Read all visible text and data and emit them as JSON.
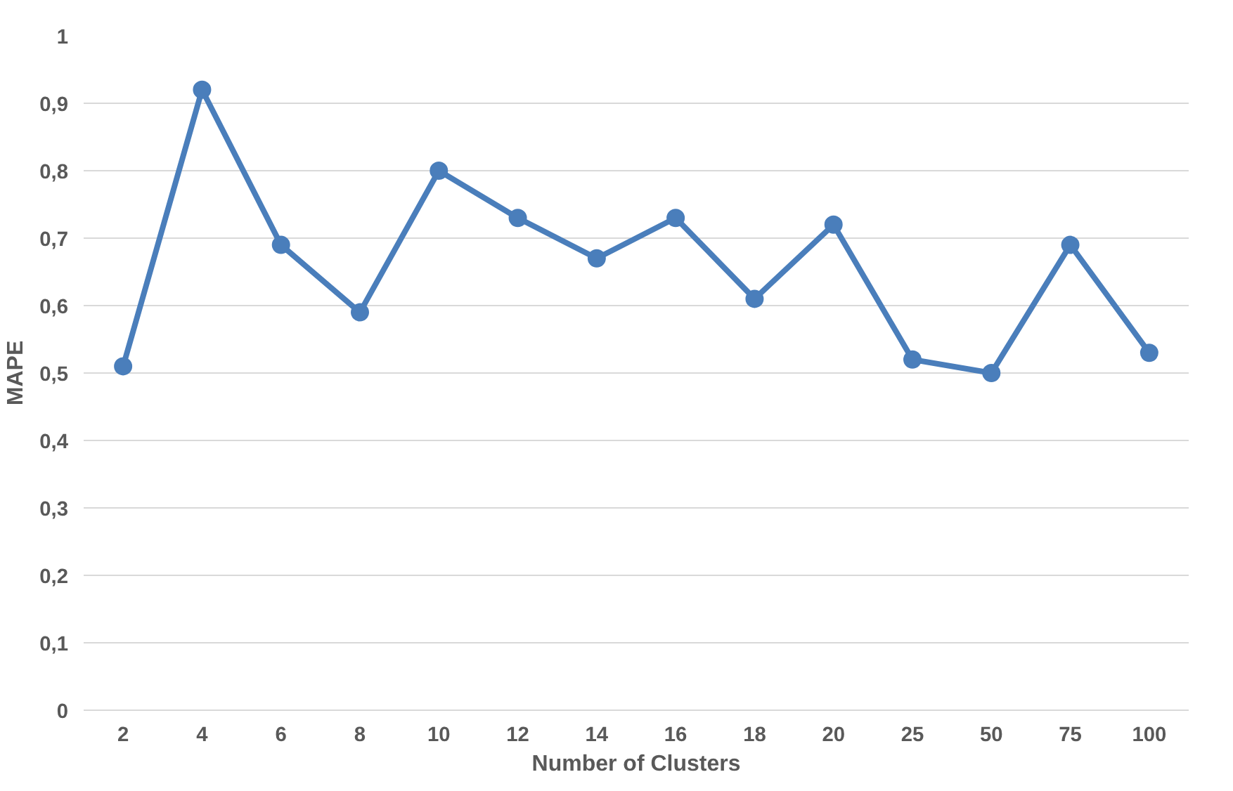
{
  "chart_data": {
    "type": "line",
    "xlabel": "Number of Clusters",
    "ylabel": "MAPE",
    "categories": [
      "2",
      "4",
      "6",
      "8",
      "10",
      "12",
      "14",
      "16",
      "18",
      "20",
      "25",
      "50",
      "75",
      "100"
    ],
    "series": [
      {
        "color": "#4a7ebb",
        "values": [
          0.51,
          0.92,
          0.69,
          0.59,
          0.8,
          0.73,
          0.67,
          0.73,
          0.61,
          0.72,
          0.52,
          0.5,
          0.69,
          0.53
        ]
      }
    ],
    "ylim": [
      0,
      1
    ],
    "yticks": [
      0,
      {
        "value": 0.1,
        "label": "0,1"
      },
      {
        "value": 0.2,
        "label": "0,2"
      },
      {
        "value": 0.3,
        "label": "0,3"
      },
      {
        "value": 0.4,
        "label": "0,4"
      },
      {
        "value": 0.5,
        "label": "0,5"
      },
      {
        "value": 0.6,
        "label": "0,6"
      },
      {
        "value": 0.7,
        "label": "0,7"
      },
      {
        "value": 0.8,
        "label": "0,8"
      },
      {
        "value": 0.9,
        "label": "0,9"
      },
      1
    ],
    "grid": "y",
    "marker": "circle",
    "line_style": "solid"
  }
}
